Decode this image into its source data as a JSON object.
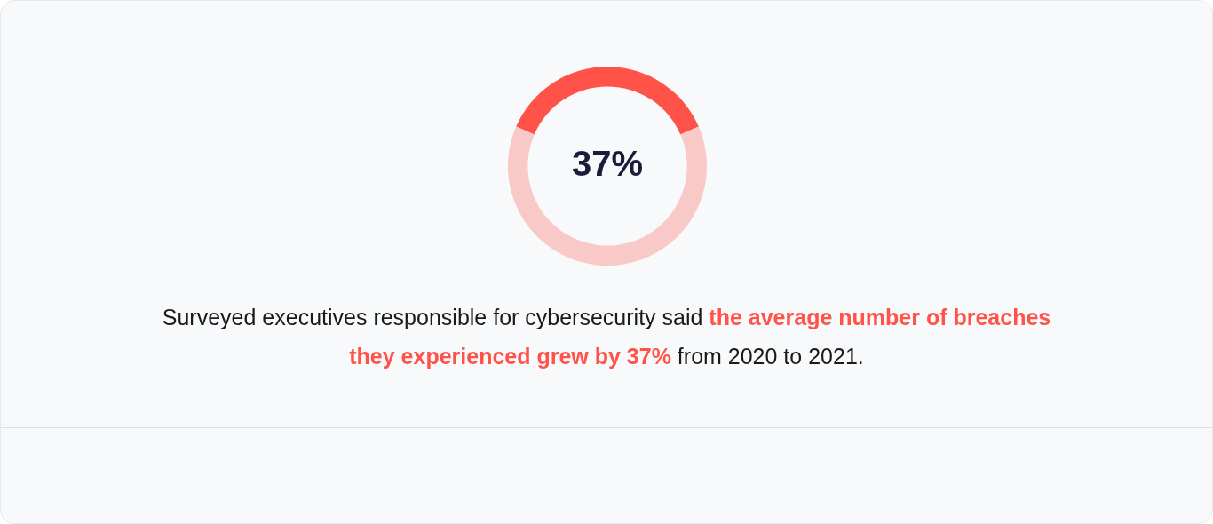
{
  "chart_data": {
    "type": "donut",
    "categories": [
      null,
      null
    ],
    "values": [
      37,
      63
    ],
    "colors": [
      "#ff5349",
      "#f9c9c7"
    ],
    "value_labels": [
      "37%",
      null
    ],
    "annotations": [
      "Surveyed executives responsible for cybersecurity said ",
      "the average number of breaches they experienced grew by 37%",
      " from 2020 to 2021."
    ]
  }
}
